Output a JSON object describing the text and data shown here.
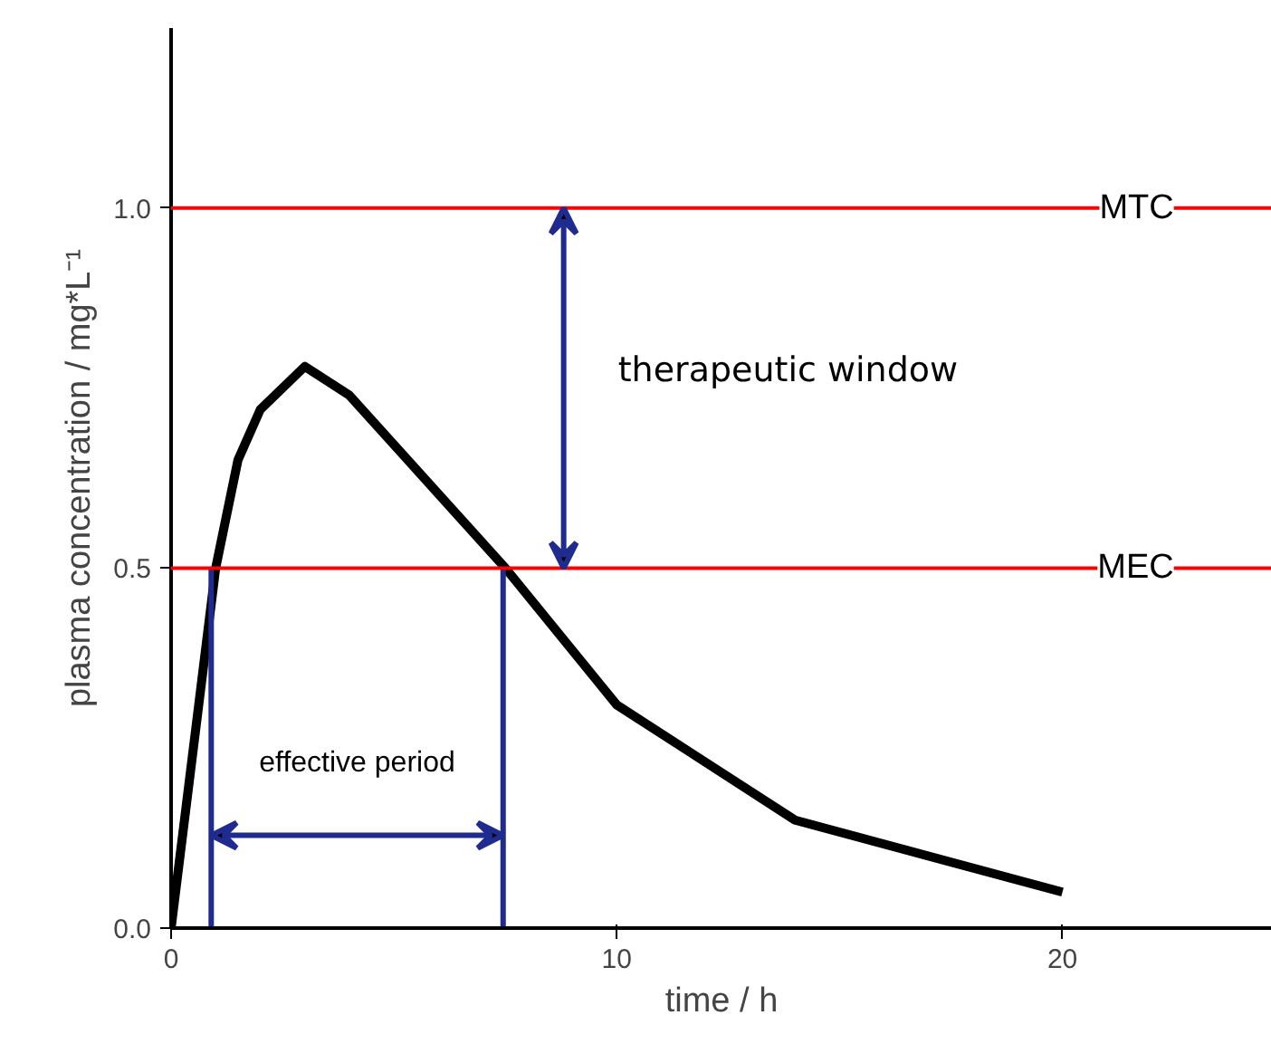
{
  "chart_data": {
    "type": "line",
    "xlabel": "time / h",
    "ylabel": "plasma concentration / mg*L⁻¹",
    "x": [
      0,
      1,
      1.5,
      2,
      3,
      4,
      7.5,
      10,
      14,
      20
    ],
    "series": [
      {
        "color": "#000000",
        "values": [
          0,
          0.5,
          0.65,
          0.72,
          0.78,
          0.74,
          0.5,
          0.31,
          0.15,
          0.05
        ]
      }
    ],
    "xlim": [
      0,
      24.7
    ],
    "ylim": [
      0,
      1.25
    ],
    "xticks": [
      0,
      10,
      20
    ],
    "yticks": [
      {
        "value": 0,
        "label": "0.0"
      },
      {
        "value": 0.5,
        "label": "0.5"
      },
      {
        "value": 1,
        "label": "1.0"
      }
    ],
    "ref_lines": [
      {
        "axis": "y",
        "value": 1.0,
        "label": "MTC",
        "color": "#ff0000"
      },
      {
        "axis": "y",
        "value": 0.5,
        "label": "MEC",
        "color": "#ff0000"
      },
      {
        "axis": "x",
        "value": 0.9,
        "color": "#1f2b8f"
      },
      {
        "axis": "x",
        "value": 7.45,
        "color": "#1f2b8f"
      }
    ],
    "annotations": [
      "therapeutic window",
      "effective period"
    ],
    "grid": false,
    "marker": "none",
    "line_style": "solid"
  }
}
